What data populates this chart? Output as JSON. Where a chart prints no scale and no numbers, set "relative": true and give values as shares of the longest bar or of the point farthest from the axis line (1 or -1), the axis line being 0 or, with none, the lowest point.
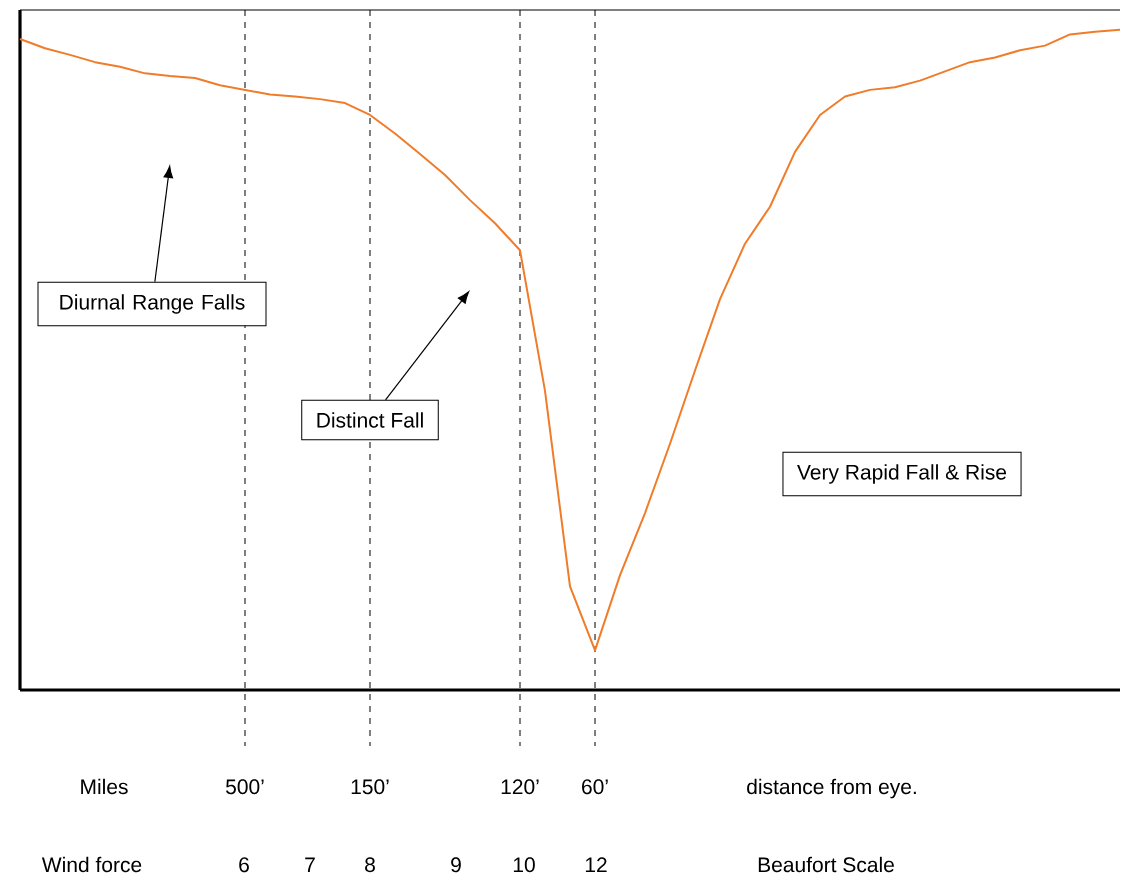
{
  "chart_data": {
    "type": "line",
    "relative": true,
    "color": "#f07c2a",
    "categories": [
      null,
      null,
      null,
      null,
      null,
      null,
      null,
      null,
      null,
      "500’",
      null,
      null,
      null,
      null,
      "150’",
      null,
      null,
      null,
      null,
      null,
      "120’",
      null,
      null,
      "60’",
      null,
      null,
      null,
      null,
      null,
      null,
      null,
      null,
      null,
      null,
      null,
      null,
      null,
      null,
      null,
      null,
      null,
      null,
      null,
      null,
      null
    ],
    "values": [
      0.986,
      0.972,
      0.962,
      0.951,
      0.944,
      0.934,
      0.93,
      0.927,
      0.916,
      0.909,
      0.902,
      0.899,
      0.895,
      0.889,
      0.871,
      0.843,
      0.812,
      0.78,
      0.742,
      0.707,
      0.666,
      0.453,
      0.157,
      0.06,
      0.174,
      0.268,
      0.373,
      0.484,
      0.592,
      0.676,
      0.732,
      0.815,
      0.871,
      0.899,
      0.909,
      0.913,
      0.923,
      0.937,
      0.951,
      0.958,
      0.969,
      0.976,
      0.993,
      0.997,
      1
    ],
    "ref_lines": [
      {
        "axis": "x",
        "value": "500’",
        "line_style": "dashed"
      },
      {
        "axis": "x",
        "value": "150’",
        "line_style": "dashed"
      },
      {
        "axis": "x",
        "value": "120’",
        "line_style": "dashed"
      },
      {
        "axis": "x",
        "value": "60’",
        "line_style": "dashed"
      }
    ],
    "annotations": [
      "Diurnal Range Falls",
      "Distinct Fall",
      "Very Rapid Fall & Rise",
      "Miles",
      "distance from eye.",
      "Wind force",
      "6",
      "7",
      "8",
      "9",
      "10",
      "12",
      "Beaufort Scale"
    ],
    "line_style": "solid",
    "marker": "none"
  }
}
